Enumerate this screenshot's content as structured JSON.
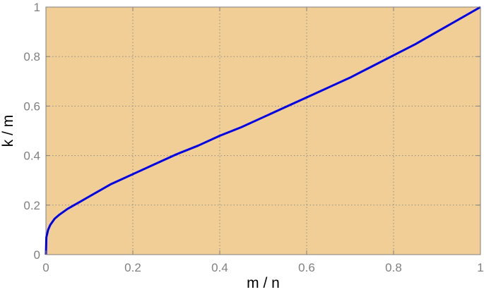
{
  "chart_data": {
    "type": "line",
    "title": "",
    "xlabel": "m / n",
    "ylabel": "k / m",
    "xlim": [
      0,
      1
    ],
    "ylim": [
      0,
      1
    ],
    "grid": true,
    "x_ticks": [
      "0",
      "0.2",
      "0.4",
      "0.6",
      "0.8",
      "1"
    ],
    "y_ticks": [
      "0",
      "0.2",
      "0.4",
      "0.6",
      "0.8",
      "1"
    ],
    "series": [
      {
        "x": [
          0,
          0.001,
          0.005,
          0.01,
          0.02,
          0.03,
          0.05,
          0.075,
          0.1,
          0.15,
          0.2,
          0.25,
          0.3,
          0.35,
          0.4,
          0.45,
          0.5,
          0.55,
          0.6,
          0.65,
          0.7,
          0.75,
          0.8,
          0.85,
          0.9,
          0.95,
          1.0
        ],
        "y": [
          0,
          0.07,
          0.1,
          0.12,
          0.145,
          0.16,
          0.185,
          0.21,
          0.235,
          0.285,
          0.325,
          0.365,
          0.405,
          0.44,
          0.48,
          0.515,
          0.555,
          0.595,
          0.635,
          0.675,
          0.715,
          0.76,
          0.805,
          0.85,
          0.9,
          0.95,
          1.0
        ]
      }
    ],
    "colors": {
      "plot_background": "#F0CE96",
      "line": "#0000E6",
      "grid": "#8c8c8c",
      "axis": "#808080"
    }
  }
}
